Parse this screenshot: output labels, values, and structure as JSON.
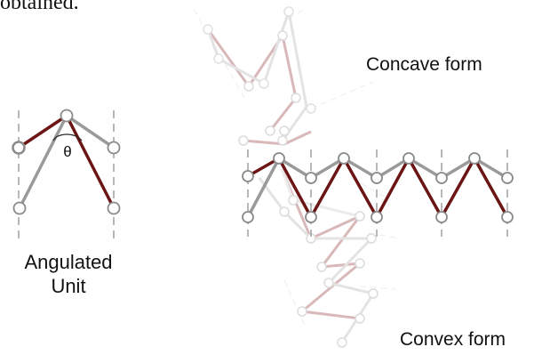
{
  "caption_top": "obtained.",
  "angulated_unit": {
    "line1": "Angulated",
    "line2": "Unit",
    "angle_symbol": "θ"
  },
  "labels": {
    "concave": "Concave form",
    "convex": "Convex form"
  },
  "colors": {
    "dark_bar": "#6b1515",
    "grey_bar": "#9a9a9a",
    "faded_red": "#d8b8b8",
    "faded_grey": "#e3e3e3",
    "dash": "#888888",
    "node_fill": "#ffffff"
  }
}
